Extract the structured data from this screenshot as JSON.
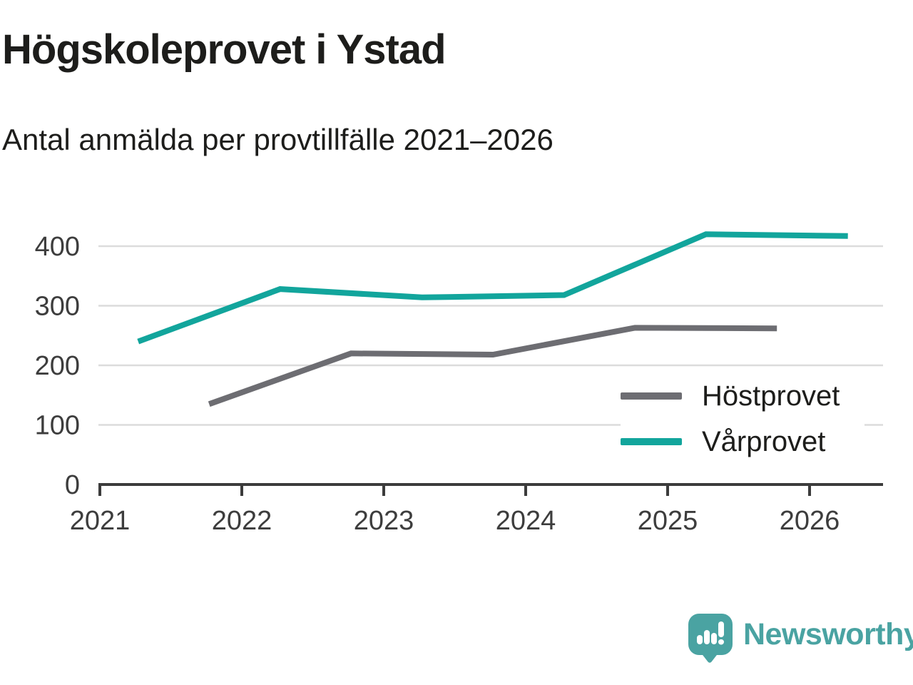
{
  "page": {
    "title": "Högskoleprovet i Ystad",
    "subtitle": "Antal anmälda per provtillfälle 2021–2026"
  },
  "chart_data": {
    "type": "line",
    "title": "Högskoleprovet i Ystad",
    "subtitle": "Antal anmälda per provtillfälle 2021–2026",
    "xlabel": "",
    "ylabel": "",
    "x_ticks": [
      2021,
      2022,
      2023,
      2024,
      2025,
      2026
    ],
    "x_tick_labels": [
      "2021",
      "2022",
      "2023",
      "2024",
      "2025",
      "2026"
    ],
    "y_ticks": [
      0,
      100,
      200,
      300,
      400
    ],
    "y_tick_labels": [
      "0",
      "100",
      "200",
      "300",
      "400"
    ],
    "ylim": [
      0,
      450
    ],
    "xlim": [
      2020.99,
      2026.53
    ],
    "grid": "horizontal-only",
    "legend_position": "inside-right",
    "series": [
      {
        "name": "Höstprovet",
        "color": "#6d6d72",
        "x": [
          2021.77,
          2022.77,
          2023.77,
          2024.77,
          2025.77
        ],
        "values": [
          135,
          220,
          218,
          263,
          262
        ]
      },
      {
        "name": "Vårprovet",
        "color": "#12a59c",
        "x": [
          2021.27,
          2022.27,
          2023.27,
          2024.27,
          2025.27,
          2026.27
        ],
        "values": [
          240,
          328,
          314,
          318,
          420,
          417
        ]
      }
    ]
  },
  "branding": {
    "logo_text": "Newsworthy",
    "logo_color": "#4aa3a2",
    "logo_icon": "speech-bubble-bar-chart-icon"
  },
  "colors": {
    "axis": "#3c3c3c",
    "gridline": "#dcdcdc",
    "tick_text": "#3d3d3d",
    "heading_text": "#1d1d1b"
  }
}
